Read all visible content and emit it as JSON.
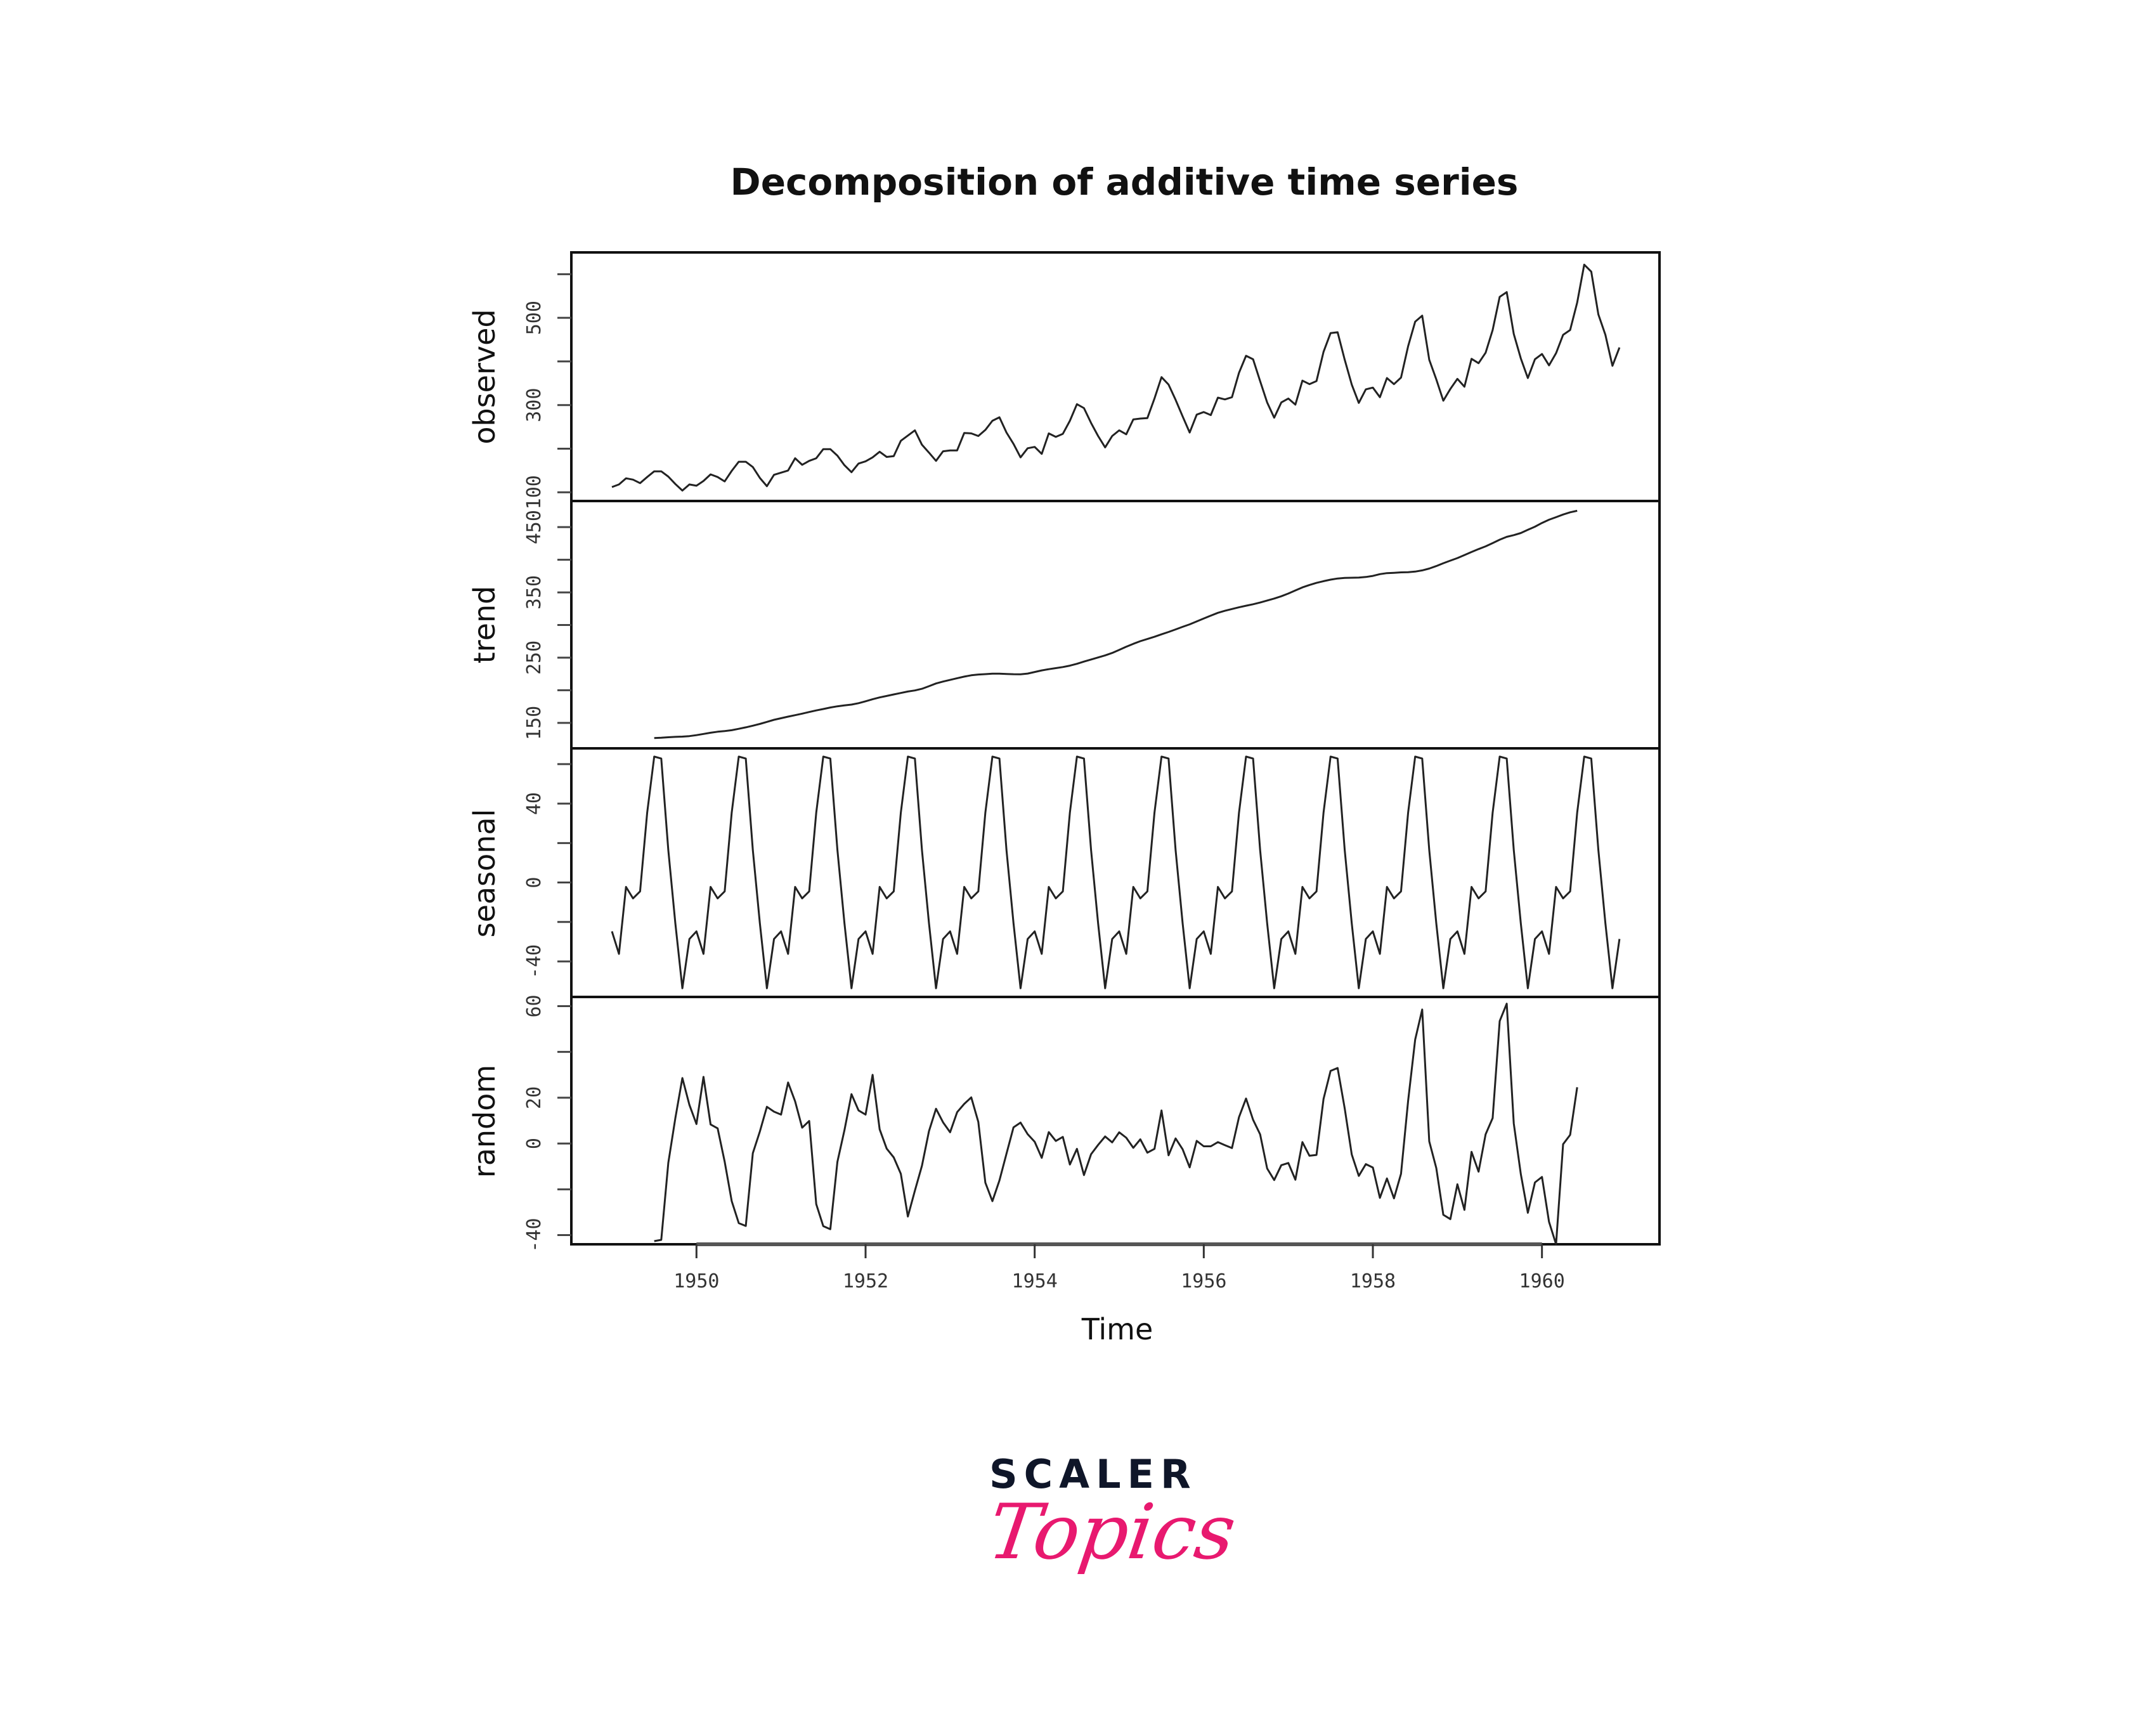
{
  "chart_data": {
    "type": "line",
    "title": "Decomposition of additive time series",
    "xlabel": "Time",
    "x_ticks": [
      1950,
      1952,
      1954,
      1956,
      1958,
      1960
    ],
    "xlim": [
      1948.52,
      1961.39
    ],
    "start": 1949,
    "frequency": 12,
    "observed": [
      112,
      118,
      132,
      129,
      121,
      135,
      148,
      148,
      136,
      119,
      104,
      118,
      115,
      126,
      141,
      135,
      125,
      149,
      170,
      170,
      158,
      133,
      114,
      140,
      145,
      150,
      178,
      163,
      172,
      178,
      199,
      199,
      184,
      162,
      146,
      166,
      171,
      180,
      193,
      181,
      183,
      218,
      230,
      242,
      209,
      191,
      172,
      194,
      196,
      196,
      236,
      235,
      229,
      243,
      264,
      272,
      237,
      211,
      180,
      201,
      204,
      188,
      235,
      227,
      234,
      264,
      302,
      293,
      259,
      229,
      203,
      229,
      242,
      233,
      267,
      269,
      270,
      315,
      364,
      347,
      312,
      274,
      237,
      278,
      284,
      277,
      317,
      313,
      318,
      374,
      413,
      405,
      355,
      306,
      271,
      306,
      315,
      301,
      356,
      348,
      355,
      422,
      465,
      467,
      404,
      347,
      305,
      336,
      340,
      318,
      362,
      348,
      363,
      435,
      491,
      505,
      404,
      359,
      310,
      337,
      360,
      342,
      406,
      396,
      420,
      472,
      548,
      559,
      463,
      407,
      362,
      405,
      417,
      391,
      419,
      461,
      472,
      535,
      622,
      606,
      508,
      461,
      390,
      432
    ],
    "seasonal_figure": [
      -24.75,
      -36.19,
      -2.24,
      -8.04,
      -4.51,
      35.4,
      63.83,
      62.82,
      16.52,
      -20.64,
      -53.59,
      -28.62
    ],
    "trend_method": "centered 2x12 moving average (first and last 6 months undefined)",
    "random_method": "observed - trend - seasonal",
    "panels": [
      {
        "name": "observed",
        "ylabel": "observed",
        "ylim": [
          80,
          650
        ],
        "ticks": [
          100,
          200,
          300,
          400,
          500,
          600
        ],
        "tick_labels": [
          "100",
          "300",
          "500"
        ],
        "labeled_ticks": [
          100,
          300,
          500
        ]
      },
      {
        "name": "trend",
        "ylabel": "trend",
        "ylim": [
          111,
          490
        ],
        "ticks": [
          150,
          200,
          250,
          300,
          350,
          400,
          450
        ],
        "labeled_ticks": [
          150,
          250,
          350,
          450
        ]
      },
      {
        "name": "seasonal",
        "ylabel": "seasonal",
        "ylim": [
          -58,
          68
        ],
        "ticks": [
          -40,
          -20,
          0,
          20,
          40,
          60
        ],
        "labeled_ticks": [
          -40,
          0,
          40
        ]
      },
      {
        "name": "random",
        "ylabel": "random",
        "ylim": [
          -44,
          64
        ],
        "ticks": [
          -40,
          -20,
          0,
          20,
          40,
          60
        ],
        "labeled_ticks": [
          -40,
          0,
          20,
          60
        ]
      }
    ]
  },
  "labels": {
    "title": "Decomposition of additive time series",
    "xlabel": "Time",
    "panel_observed": "observed",
    "panel_trend": "trend",
    "panel_seasonal": "seasonal",
    "panel_random": "random"
  },
  "branding": {
    "line1": "SCALER",
    "line2": "Topics",
    "line1_color": "#0f1629",
    "line2_color": "#e8196f"
  }
}
